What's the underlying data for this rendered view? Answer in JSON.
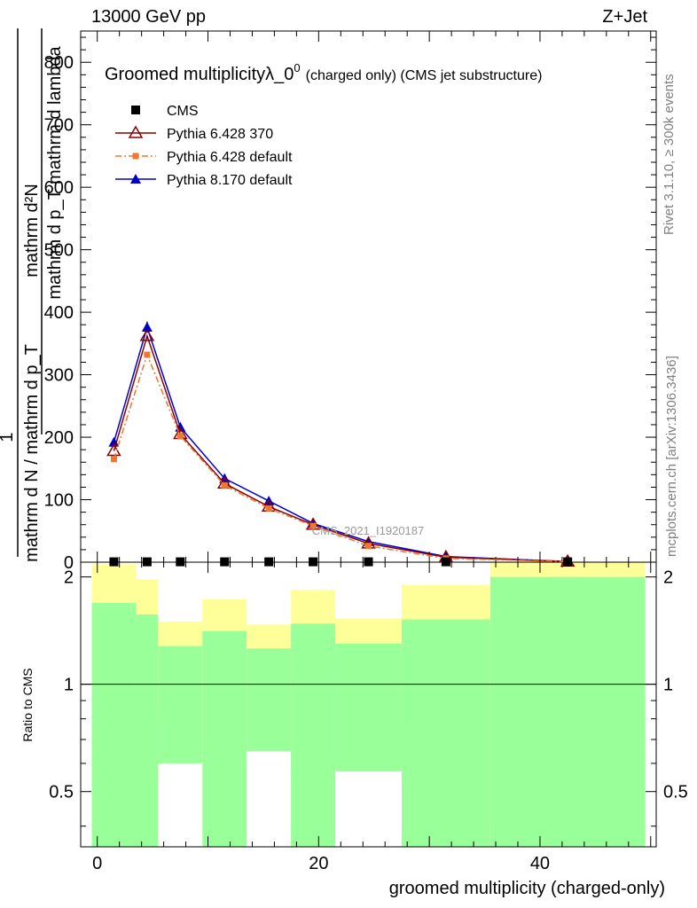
{
  "header": {
    "left": "13000 GeV pp",
    "right": "Z+Jet"
  },
  "side_labels": {
    "rivet": "Rivet 3.1.10, ≥ 300k events",
    "mcplots": "mcplots.cern.ch [arXiv:1306.3436]"
  },
  "chart_data": [
    {
      "type": "line",
      "title": "Groomed multiplicityλ_0⁰ (charged only) (CMS jet substructure)",
      "title_main": "Groomed multiplicityλ_0",
      "title_sup": "0",
      "title_rest": "(charged only) (CMS jet substructure)",
      "ylabel_numerator": "mathrm d²N",
      "ylabel_denominator": "mathrm d p_T mathrm d lambda",
      "ylabel_left": "1",
      "ylabel_left_denominator": "mathrm d N / mathrm d p_T",
      "watermark": "CMS_2021_I1920187",
      "xlim": [
        -1.5,
        50.5
      ],
      "ylim": [
        0,
        850
      ],
      "yticks": [
        0,
        100,
        200,
        300,
        400,
        500,
        600,
        700,
        800
      ],
      "x": [
        1.5,
        4.5,
        7.5,
        11.5,
        15.5,
        19.5,
        24.5,
        31.5,
        42.5
      ],
      "series": [
        {
          "name": "CMS",
          "color": "#000000",
          "marker": "square",
          "values": [
            0.6,
            0.6,
            0.6,
            0.6,
            0.6,
            0.6,
            0.6,
            0.6,
            0.6
          ]
        },
        {
          "name": "Pythia 6.428 370",
          "color": "#8b0000",
          "marker": "open-triangle",
          "values": [
            178,
            362,
            205,
            126,
            89,
            60,
            30,
            8,
            1
          ]
        },
        {
          "name": "Pythia 6.428 default",
          "color": "#ee7733",
          "marker": "square",
          "values": [
            165,
            332,
            202,
            123,
            86,
            58,
            26,
            6,
            0.8
          ]
        },
        {
          "name": "Pythia 8.170 default",
          "color": "#0000cc",
          "marker": "triangle",
          "values": [
            192,
            376,
            216,
            134,
            98,
            62,
            33,
            9,
            1
          ]
        }
      ]
    },
    {
      "type": "area",
      "ylabel": "Ratio to CMS",
      "xlabel": "groomed multiplicity (charged-only)",
      "xlim": [
        -1.5,
        50.5
      ],
      "ylim": [
        0.35,
        2.2
      ],
      "yticks": [
        0.5,
        1,
        2
      ],
      "xticks": [
        0,
        20,
        40
      ],
      "bins": [
        {
          "lo": -0.5,
          "hi": 3.5,
          "green": [
            0.35,
            1.69
          ],
          "yellow": [
            0.35,
            2.17
          ]
        },
        {
          "lo": 3.5,
          "hi": 5.5,
          "green": [
            0.35,
            1.57
          ],
          "yellow": [
            0.53,
            1.97
          ]
        },
        {
          "lo": 5.5,
          "hi": 9.5,
          "green": [
            0.6,
            1.28
          ],
          "yellow": [
            0.83,
            1.5
          ]
        },
        {
          "lo": 9.5,
          "hi": 13.5,
          "green": [
            0.35,
            1.41
          ],
          "yellow": [
            0.72,
            1.73
          ]
        },
        {
          "lo": 13.5,
          "hi": 17.5,
          "green": [
            0.65,
            1.26
          ],
          "yellow": [
            0.85,
            1.47
          ]
        },
        {
          "lo": 17.5,
          "hi": 21.5,
          "green": [
            0.35,
            1.48
          ],
          "yellow": [
            0.63,
            1.84
          ]
        },
        {
          "lo": 21.5,
          "hi": 27.5,
          "green": [
            0.57,
            1.3
          ],
          "yellow": [
            0.82,
            1.53
          ]
        },
        {
          "lo": 27.5,
          "hi": 35.5,
          "green": [
            0.35,
            1.52
          ],
          "yellow": [
            0.58,
            1.9
          ]
        },
        {
          "lo": 35.5,
          "hi": 49.5,
          "green": [
            0.35,
            2.0
          ],
          "yellow": [
            0.35,
            2.2
          ]
        }
      ],
      "reference": 1
    }
  ]
}
